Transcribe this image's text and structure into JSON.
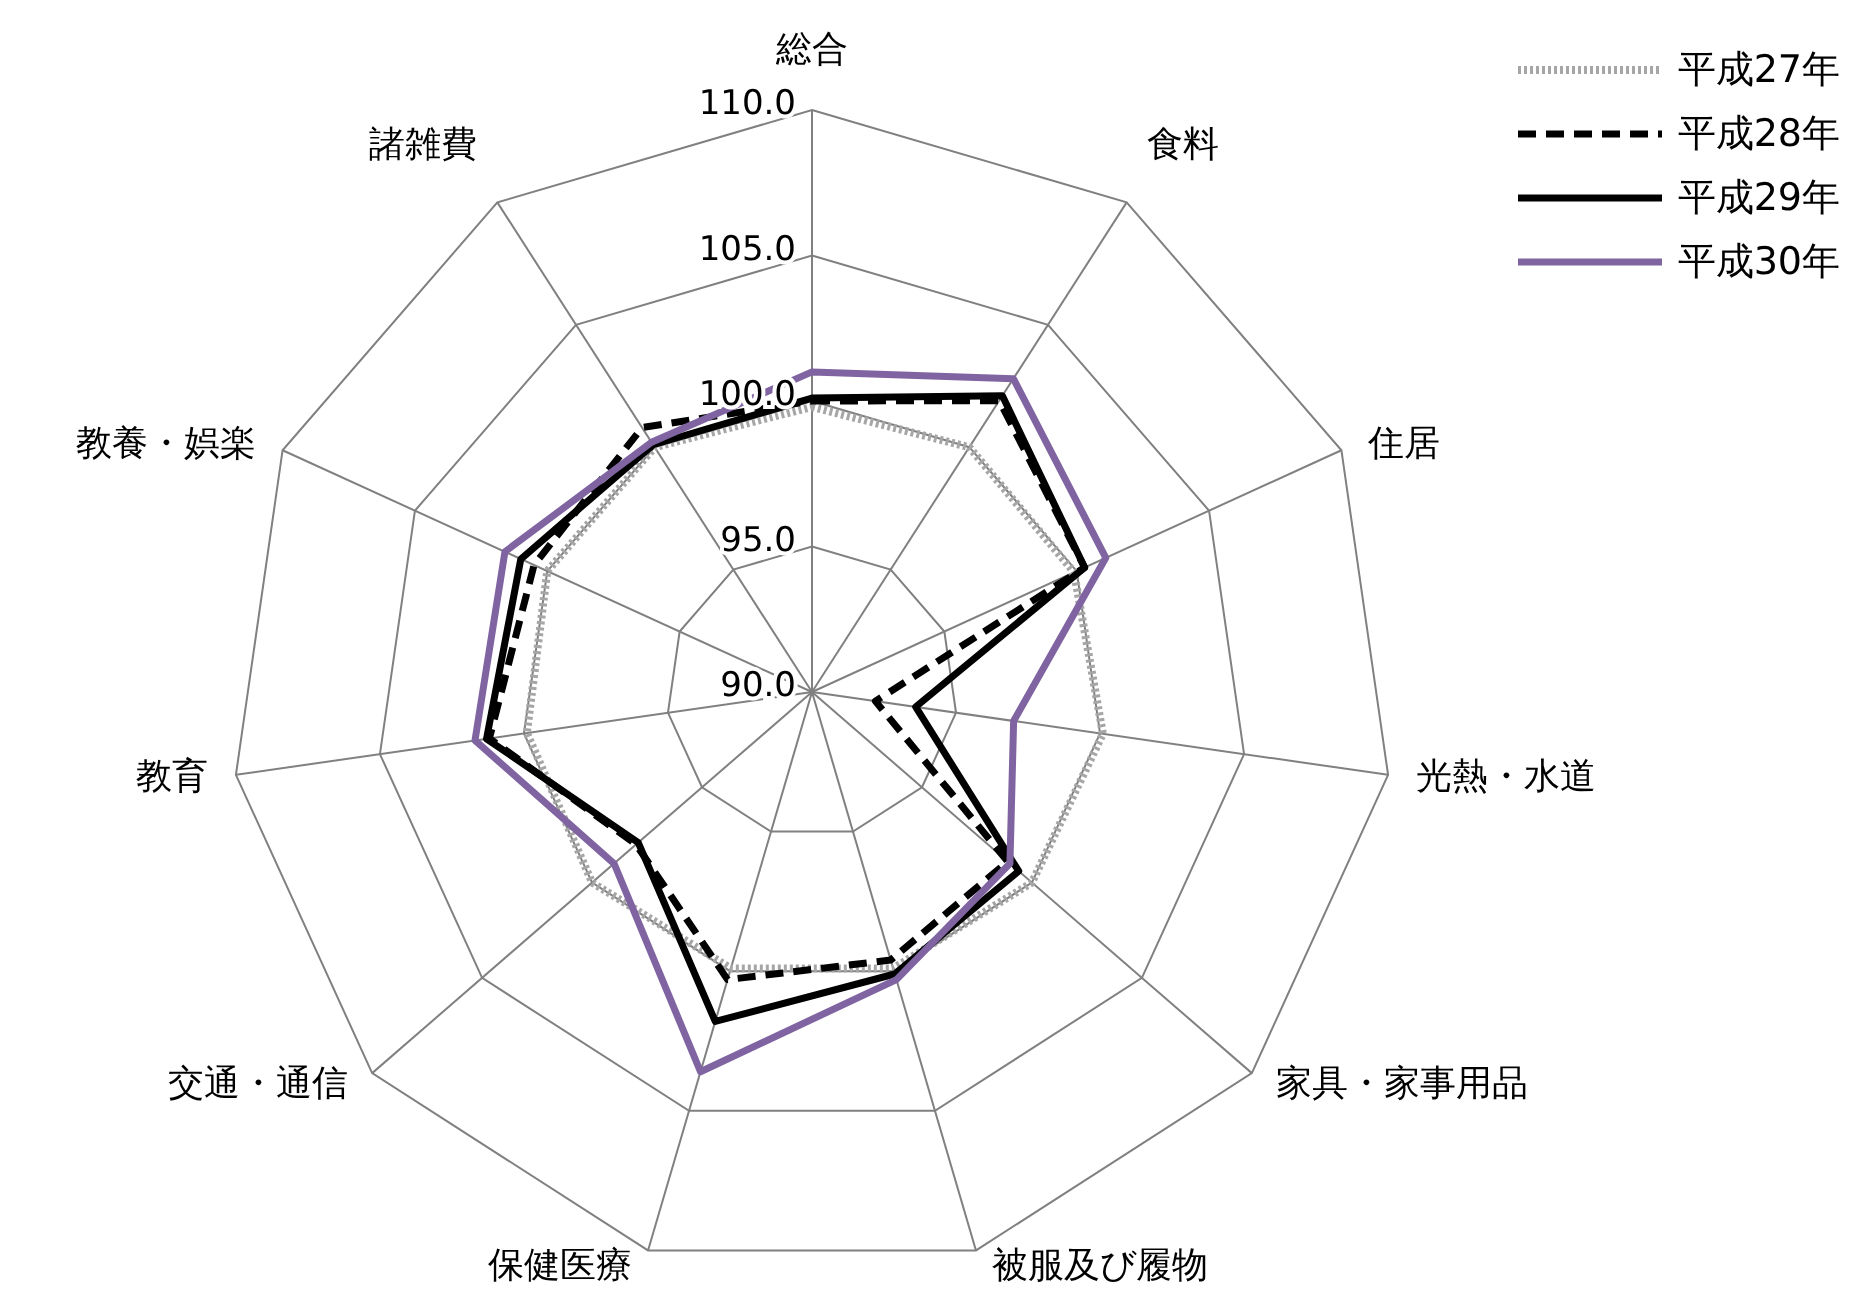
{
  "chart_data": {
    "type": "radar",
    "categories": [
      "総合",
      "食料",
      "住居",
      "光熱・水道",
      "家具・家事用品",
      "被服及び履物",
      "保健医療",
      "交通・通信",
      "教育",
      "教養・娯楽",
      "諸雑費"
    ],
    "series": [
      {
        "name": "平成27年",
        "color": "#a6a6a6",
        "line_style": "dotted",
        "values": [
          99.8,
          100.0,
          99.9,
          100.1,
          100.0,
          99.9,
          99.9,
          100.0,
          99.9,
          100.0,
          100.0
        ]
      },
      {
        "name": "平成28年",
        "color": "#000000",
        "line_style": "dashed",
        "values": [
          100.0,
          101.9,
          100.3,
          92.2,
          98.9,
          99.6,
          100.3,
          98.0,
          101.2,
          100.5,
          100.8
        ]
      },
      {
        "name": "平成29年",
        "color": "#000000",
        "line_style": "solid",
        "values": [
          100.1,
          102.1,
          100.3,
          93.6,
          99.4,
          100.1,
          101.8,
          97.9,
          101.3,
          101.0,
          100.1
        ]
      },
      {
        "name": "平成30年",
        "color": "#8064a2",
        "line_style": "solid",
        "values": [
          101.0,
          102.8,
          101.1,
          97.0,
          99.0,
          100.3,
          103.6,
          99.0,
          101.7,
          101.6,
          100.2
        ]
      }
    ],
    "ylim": [
      90,
      110
    ],
    "yticks": [
      {
        "value": 90,
        "label": "90.0"
      },
      {
        "value": 95,
        "label": "95.0"
      },
      {
        "value": 100,
        "label": "100.0"
      },
      {
        "value": 105,
        "label": "105.0"
      },
      {
        "value": 110,
        "label": "110.0"
      }
    ],
    "grid": true,
    "legend": "top right",
    "marker": "none"
  }
}
